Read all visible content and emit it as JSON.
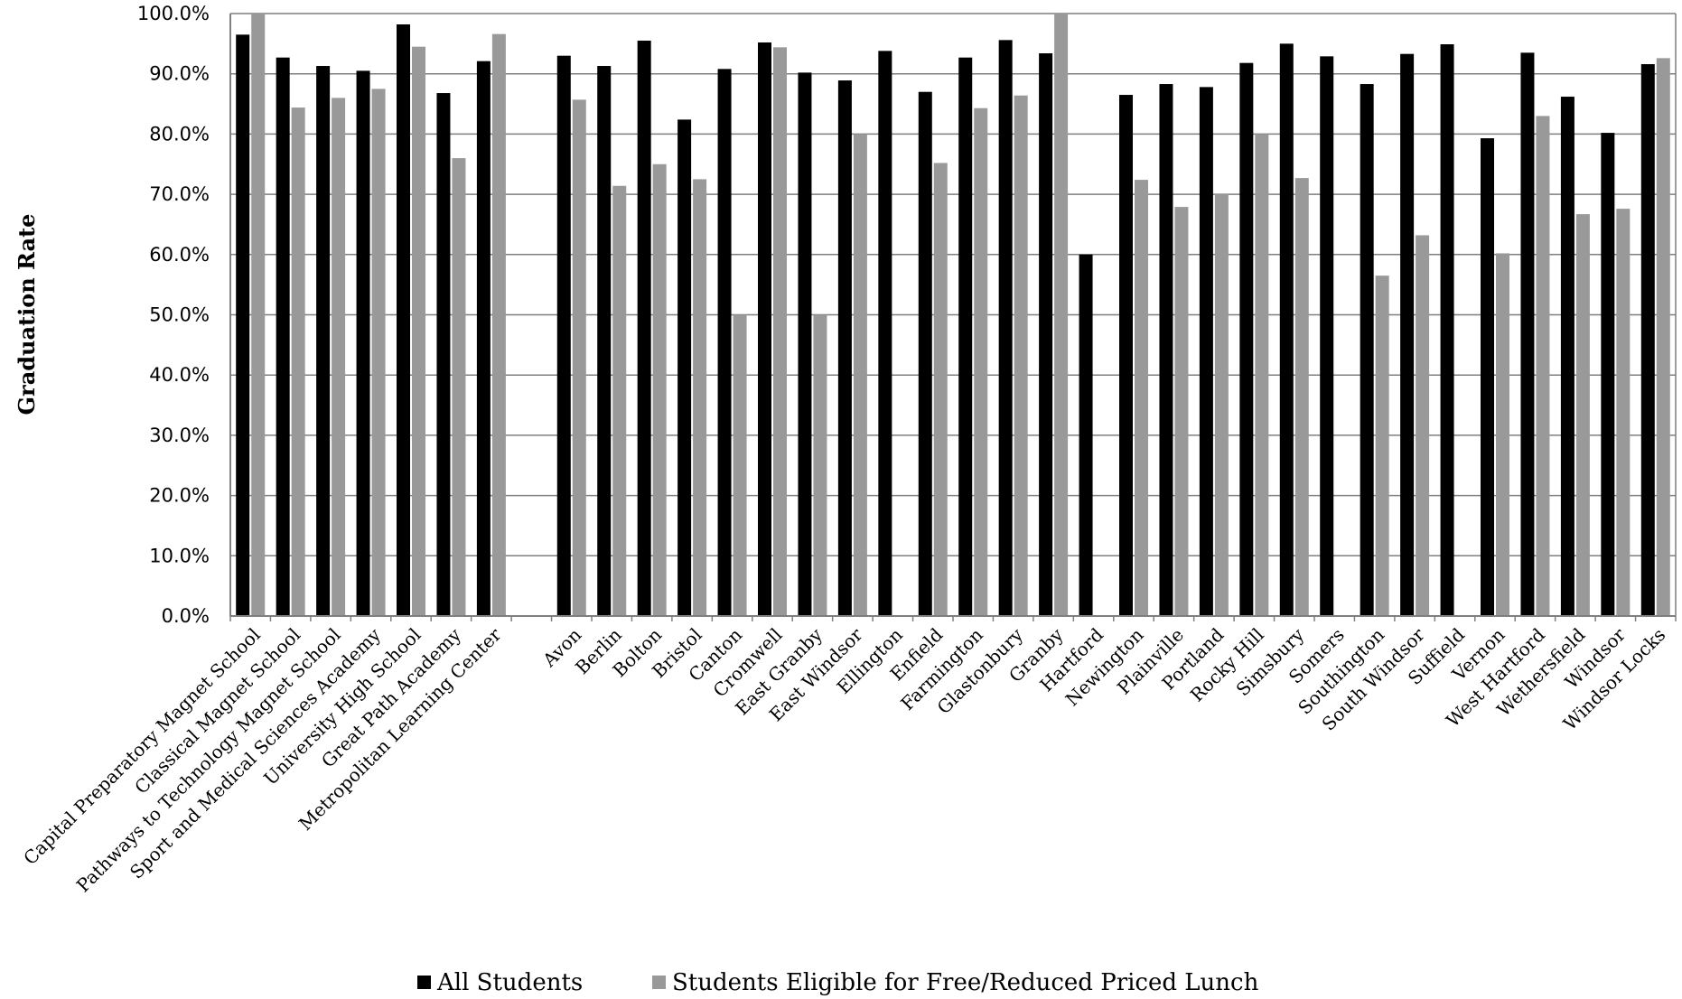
{
  "chart_data": {
    "type": "bar",
    "ylabel": "Graduation Rate",
    "xlabel": "",
    "ylim": [
      0,
      100
    ],
    "yticks": [
      "0.0%",
      "10.0%",
      "20.0%",
      "30.0%",
      "40.0%",
      "50.0%",
      "60.0%",
      "70.0%",
      "80.0%",
      "90.0%",
      "100.0%"
    ],
    "grid": "horizontal",
    "legend_position": "bottom",
    "colors": {
      "all": "#000000",
      "frl": "#999999",
      "grid": "#7f7f7f"
    },
    "categories": [
      "Capital Preparatory Magnet School",
      "Classical Magnet School",
      "Pathways to Technology Magnet School",
      "Sport and Medical Sciences Academy",
      "University High School",
      "Great Path Academy",
      "Metropolitan Learning Center",
      "",
      "Avon",
      "Berlin",
      "Bolton",
      "Bristol",
      "Canton",
      "Cromwell",
      "East Granby",
      "East Windsor",
      "Ellington",
      "Enfield",
      "Farmington",
      "Glastonbury",
      "Granby",
      "Hartford",
      "Newington",
      "Plainville",
      "Portland",
      "Rocky Hill",
      "Simsbury",
      "Somers",
      "Southington",
      "South Windsor",
      "Suffield",
      "Vernon",
      "West Hartford",
      "Wethersfield",
      "Windsor",
      "Windsor Locks"
    ],
    "series": [
      {
        "name": "All Students",
        "values": [
          96.5,
          92.7,
          91.3,
          90.5,
          98.2,
          86.8,
          92.1,
          null,
          93.0,
          91.3,
          95.5,
          82.4,
          90.8,
          95.2,
          90.2,
          88.9,
          93.8,
          87.0,
          92.7,
          95.6,
          93.4,
          60.0,
          86.5,
          88.3,
          87.8,
          91.8,
          95.0,
          92.9,
          88.3,
          93.3,
          94.9,
          79.3,
          93.5,
          86.2,
          80.2,
          91.6
        ]
      },
      {
        "name": "Students Eligible for Free/Reduced Priced Lunch",
        "values": [
          100.0,
          84.4,
          86.0,
          87.5,
          94.5,
          76.0,
          96.6,
          null,
          85.7,
          71.4,
          75.0,
          72.5,
          50.0,
          94.4,
          50.0,
          80.0,
          null,
          75.2,
          84.3,
          86.4,
          100.0,
          null,
          72.4,
          67.9,
          70.0,
          80.0,
          72.7,
          null,
          56.5,
          63.2,
          null,
          60.2,
          83.0,
          66.7,
          67.6,
          92.6
        ]
      }
    ]
  }
}
